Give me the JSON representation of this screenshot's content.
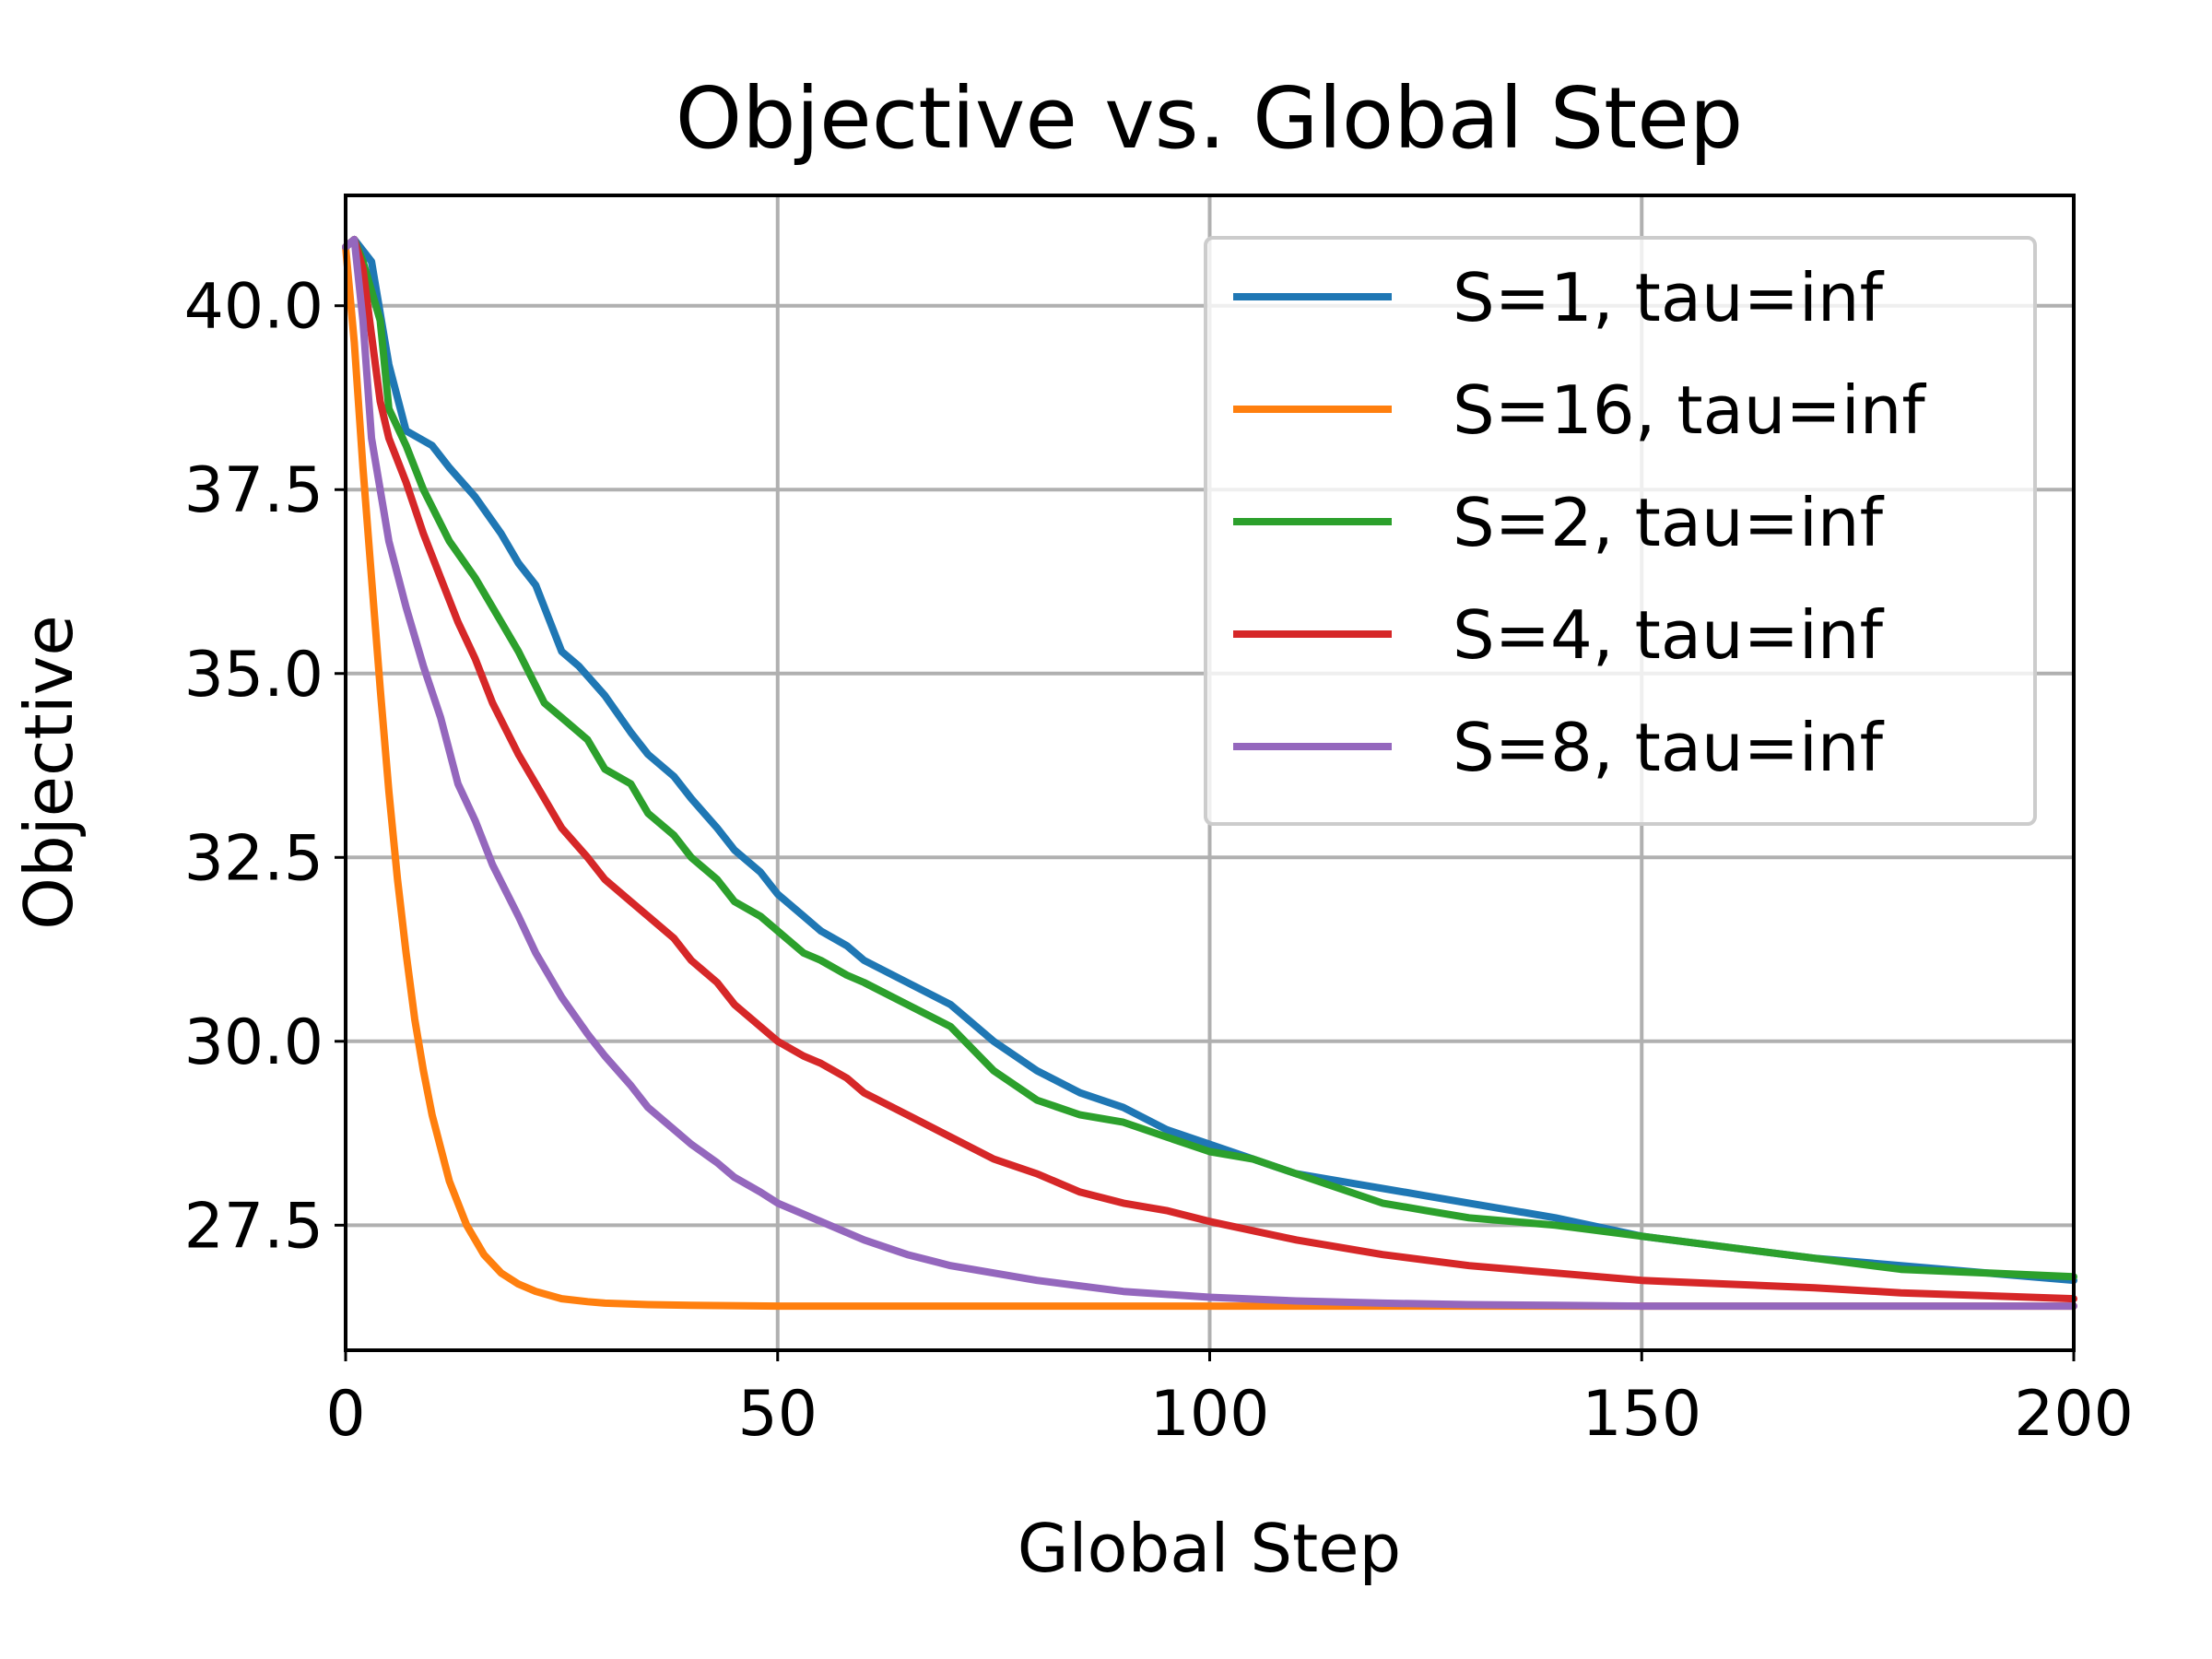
{
  "chart_data": {
    "type": "line",
    "title": "Objective vs. Global Step",
    "xlabel": "Global Step",
    "ylabel": "Objective",
    "xlim": [
      0,
      200
    ],
    "ylim": [
      25.8,
      41.5
    ],
    "xticks": [
      0,
      50,
      100,
      150,
      200
    ],
    "xtick_labels": [
      "0",
      "50",
      "100",
      "150",
      "200"
    ],
    "yticks": [
      27.5,
      30.0,
      32.5,
      35.0,
      37.5,
      40.0
    ],
    "ytick_labels": [
      "27.5",
      "30.0",
      "32.5",
      "35.0",
      "37.5",
      "40.0"
    ],
    "grid": true,
    "legend_position": "upper-right",
    "series": [
      {
        "name": "S=1, tau=inf",
        "color": "#1f77b4",
        "x": [
          0,
          1,
          3,
          5,
          7,
          10,
          12,
          15,
          18,
          20,
          22,
          25,
          27,
          30,
          33,
          35,
          38,
          40,
          43,
          45,
          48,
          50,
          53,
          55,
          58,
          60,
          65,
          70,
          75,
          80,
          85,
          90,
          95,
          100,
          105,
          110,
          115,
          120,
          125,
          130,
          140,
          150,
          160,
          170,
          180,
          190,
          200
        ],
        "y": [
          40.8,
          40.9,
          40.6,
          39.2,
          38.3,
          38.1,
          37.8,
          37.4,
          36.9,
          36.5,
          36.2,
          35.3,
          35.1,
          34.7,
          34.2,
          33.9,
          33.6,
          33.3,
          32.9,
          32.6,
          32.3,
          32.0,
          31.7,
          31.5,
          31.3,
          31.1,
          30.8,
          30.5,
          30.0,
          29.6,
          29.3,
          29.1,
          28.8,
          28.6,
          28.4,
          28.2,
          28.1,
          28.0,
          27.9,
          27.8,
          27.6,
          27.35,
          27.2,
          27.05,
          26.95,
          26.85,
          26.75
        ]
      },
      {
        "name": "S=16, tau=inf",
        "color": "#ff7f0e",
        "x": [
          0,
          1,
          2,
          3,
          4,
          5,
          6,
          7,
          8,
          9,
          10,
          12,
          14,
          16,
          18,
          20,
          22,
          25,
          28,
          30,
          35,
          40,
          50,
          60,
          80,
          100,
          120,
          150,
          200
        ],
        "y": [
          40.8,
          39.5,
          37.8,
          36.3,
          34.8,
          33.4,
          32.2,
          31.2,
          30.3,
          29.6,
          29.0,
          28.1,
          27.5,
          27.1,
          26.85,
          26.7,
          26.6,
          26.5,
          26.46,
          26.44,
          26.42,
          26.41,
          26.4,
          26.4,
          26.4,
          26.4,
          26.4,
          26.4,
          26.4
        ]
      },
      {
        "name": "S=2, tau=inf",
        "color": "#2ca02c",
        "x": [
          0,
          1,
          2,
          4,
          5,
          7,
          9,
          12,
          15,
          18,
          20,
          23,
          25,
          28,
          30,
          33,
          35,
          38,
          40,
          43,
          45,
          48,
          50,
          53,
          55,
          58,
          60,
          65,
          70,
          75,
          80,
          85,
          90,
          95,
          100,
          105,
          110,
          115,
          120,
          125,
          130,
          140,
          150,
          160,
          170,
          180,
          190,
          200
        ],
        "y": [
          40.8,
          40.9,
          40.6,
          39.8,
          38.6,
          38.1,
          37.5,
          36.8,
          36.3,
          35.7,
          35.3,
          34.6,
          34.4,
          34.1,
          33.7,
          33.5,
          33.1,
          32.8,
          32.5,
          32.2,
          31.9,
          31.7,
          31.5,
          31.2,
          31.1,
          30.9,
          30.8,
          30.5,
          30.2,
          29.6,
          29.2,
          29.0,
          28.9,
          28.7,
          28.5,
          28.4,
          28.2,
          28.0,
          27.8,
          27.7,
          27.6,
          27.5,
          27.35,
          27.2,
          27.05,
          26.9,
          26.85,
          26.8
        ]
      },
      {
        "name": "S=4, tau=inf",
        "color": "#d62728",
        "x": [
          0,
          1,
          2,
          3,
          4,
          5,
          7,
          9,
          11,
          13,
          15,
          17,
          20,
          22,
          25,
          28,
          30,
          33,
          35,
          38,
          40,
          43,
          45,
          48,
          50,
          53,
          55,
          58,
          60,
          65,
          70,
          75,
          80,
          85,
          90,
          95,
          100,
          110,
          120,
          130,
          140,
          150,
          160,
          170,
          180,
          190,
          200
        ],
        "y": [
          40.8,
          40.9,
          40.5,
          39.6,
          38.7,
          38.2,
          37.6,
          36.9,
          36.3,
          35.7,
          35.2,
          34.6,
          33.9,
          33.5,
          32.9,
          32.5,
          32.2,
          31.9,
          31.7,
          31.4,
          31.1,
          30.8,
          30.5,
          30.2,
          30.0,
          29.8,
          29.7,
          29.5,
          29.3,
          29.0,
          28.7,
          28.4,
          28.2,
          27.95,
          27.8,
          27.7,
          27.55,
          27.3,
          27.1,
          26.95,
          26.85,
          26.75,
          26.7,
          26.65,
          26.58,
          26.54,
          26.5
        ]
      },
      {
        "name": "S=8, tau=inf",
        "color": "#9467bd",
        "x": [
          0,
          1,
          2,
          3,
          4,
          5,
          7,
          9,
          11,
          13,
          15,
          17,
          20,
          22,
          25,
          28,
          30,
          33,
          35,
          38,
          40,
          43,
          45,
          48,
          50,
          55,
          60,
          65,
          70,
          75,
          80,
          90,
          100,
          110,
          120,
          130,
          140,
          150,
          160,
          180,
          200
        ],
        "y": [
          40.8,
          40.9,
          39.8,
          38.2,
          37.5,
          36.8,
          35.9,
          35.1,
          34.4,
          33.5,
          33.0,
          32.4,
          31.7,
          31.2,
          30.6,
          30.1,
          29.8,
          29.4,
          29.1,
          28.8,
          28.6,
          28.35,
          28.15,
          27.95,
          27.8,
          27.55,
          27.3,
          27.1,
          26.95,
          26.85,
          26.75,
          26.6,
          26.52,
          26.47,
          26.44,
          26.42,
          26.41,
          26.4,
          26.4,
          26.4,
          26.4
        ]
      }
    ]
  }
}
